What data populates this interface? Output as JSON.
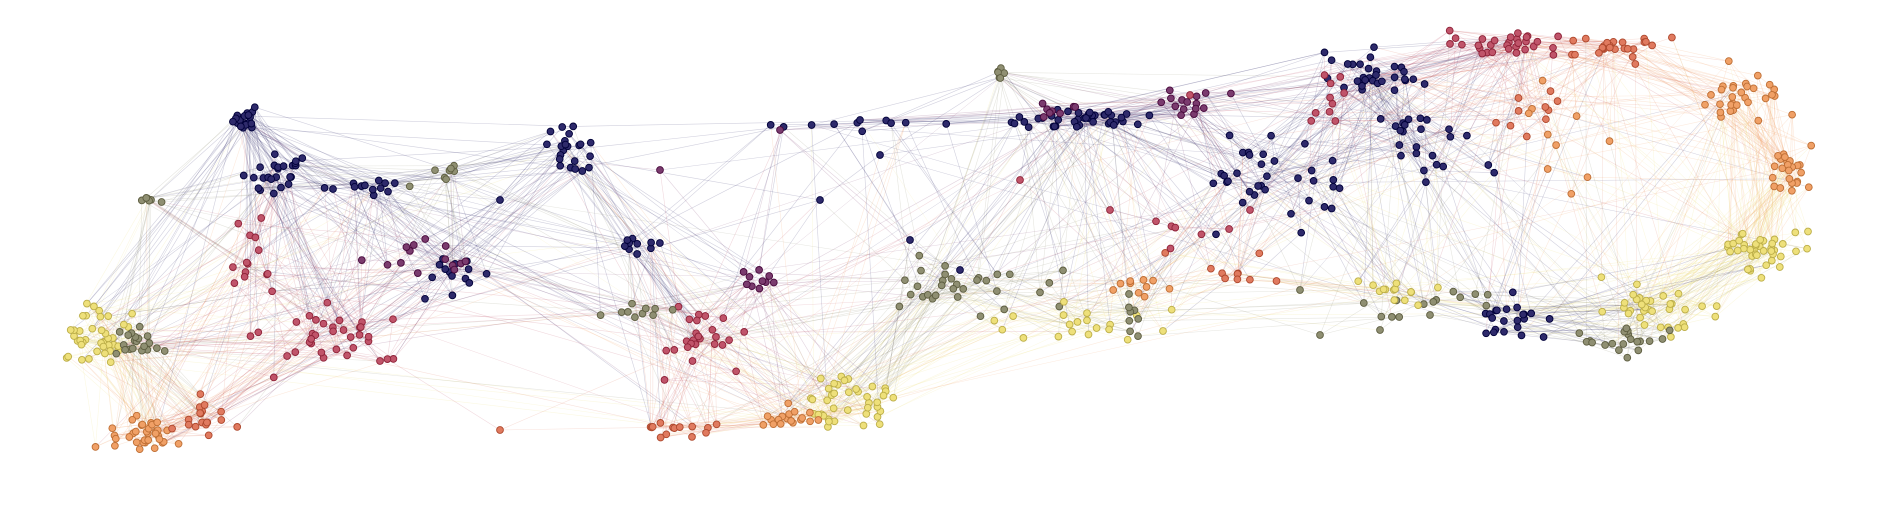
{
  "diagram": {
    "type": "network-graph",
    "background": "#ffffff",
    "node_colors": {
      "navy": "#2e2a6b",
      "plum": "#7a3b6e",
      "rose": "#c0546a",
      "coral": "#e07a5f",
      "peach": "#f0a066",
      "yellow": "#eee07a",
      "olive": "#8f8f72"
    },
    "palette_order": [
      "navy",
      "plum",
      "rose",
      "coral",
      "peach",
      "yellow",
      "olive"
    ],
    "edge_opacity": 0.22
  }
}
